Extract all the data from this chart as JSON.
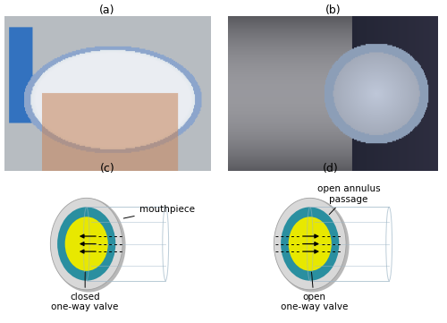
{
  "fig_width": 5.0,
  "fig_height": 3.61,
  "dpi": 100,
  "background_color": "#ffffff",
  "label_a": "(a)",
  "label_b": "(b)",
  "label_c": "(c)",
  "label_d": "(d)",
  "label_fontsize": 9,
  "annotation_fontsize": 7.5,
  "gray_disk_color_light": "#d8d8d8",
  "gray_disk_color_dark": "#b0b0b0",
  "teal_ring_color": "#2a8fa0",
  "yellow_disk_color": "#e8e800",
  "cylinder_edge_color": "#a0b8c8",
  "annotation_c_valve": "closed\none-way valve",
  "annotation_c_mouth": "mouthpiece",
  "annotation_d_annulus": "open annulus\npassage",
  "annotation_d_valve": "open\none-way valve",
  "photo_a_bg": "#b8c8d0",
  "photo_b_bg": "#505868"
}
